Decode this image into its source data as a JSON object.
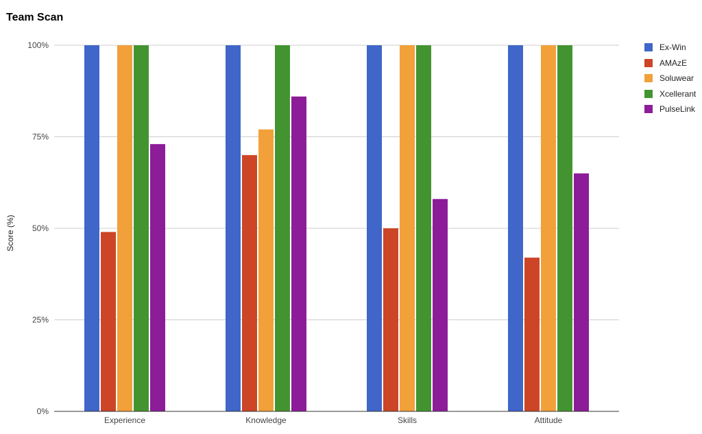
{
  "chart_data": {
    "type": "bar",
    "title": "Team Scan",
    "xlabel": "",
    "ylabel": "Score (%)",
    "ylim": [
      0,
      100
    ],
    "y_ticks": [
      "0%",
      "25%",
      "50%",
      "75%",
      "100%"
    ],
    "grid": true,
    "legend_position": "right",
    "categories": [
      "Experience",
      "Knowledge",
      "Skills",
      "Attitude"
    ],
    "series": [
      {
        "name": "Ex-Win",
        "color": "#3f66c8",
        "values": [
          100,
          100,
          100,
          100
        ]
      },
      {
        "name": "AMAzE",
        "color": "#cc4527",
        "values": [
          49,
          70,
          50,
          42
        ]
      },
      {
        "name": "Soluwear",
        "color": "#f2a03a",
        "values": [
          100,
          77,
          100,
          100
        ]
      },
      {
        "name": "Xcellerant",
        "color": "#439430",
        "values": [
          100,
          100,
          100,
          100
        ]
      },
      {
        "name": "PulseLink",
        "color": "#8c1c98",
        "values": [
          73,
          86,
          58,
          65
        ]
      }
    ]
  }
}
